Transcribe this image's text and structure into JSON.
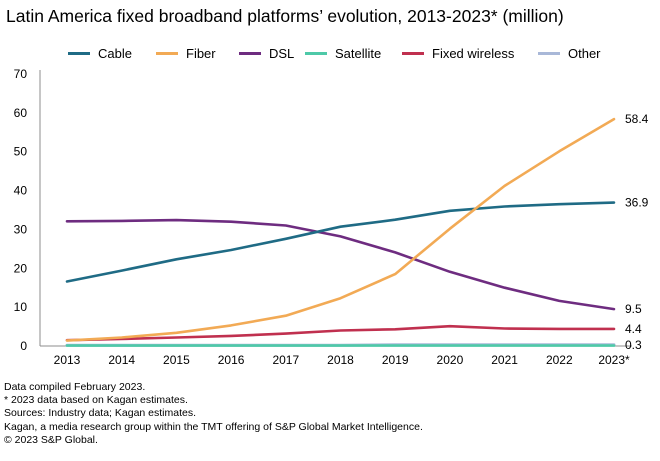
{
  "chart_data": {
    "type": "line",
    "title": "Latin America fixed broadband platforms’ evolution, 2013-2023* (million)",
    "xlabel": "",
    "ylabel": "",
    "categories": [
      "2013",
      "2014",
      "2015",
      "2016",
      "2017",
      "2018",
      "2019",
      "2020",
      "2021",
      "2022",
      "2023*"
    ],
    "ylim": [
      0,
      70
    ],
    "yticks": [
      "0",
      "10",
      "20",
      "30",
      "40",
      "50",
      "60",
      "70"
    ],
    "grid": false,
    "legend_position": "top",
    "series": [
      {
        "name": "Cable",
        "color": "#1f6b85",
        "values": [
          16.6,
          19.4,
          22.3,
          24.7,
          27.6,
          30.7,
          32.5,
          34.8,
          35.9,
          36.5,
          36.9
        ],
        "end_label": "36.9"
      },
      {
        "name": "Fiber",
        "color": "#f2aa55",
        "values": [
          1.4,
          2.2,
          3.4,
          5.3,
          7.8,
          12.3,
          18.5,
          30.2,
          41.2,
          50.1,
          58.4
        ],
        "end_label": "58.4"
      },
      {
        "name": "DSL",
        "color": "#6e2c80",
        "values": [
          32.1,
          32.2,
          32.4,
          32.0,
          31.0,
          28.2,
          24.1,
          19.1,
          15.0,
          11.6,
          9.5
        ],
        "end_label": "9.5"
      },
      {
        "name": "Satellite",
        "color": "#4ec9a8",
        "values": [
          0.1,
          0.1,
          0.1,
          0.1,
          0.1,
          0.1,
          0.1,
          0.1,
          0.1,
          0.1,
          0.1
        ],
        "end_label": ""
      },
      {
        "name": "Fixed wireless",
        "color": "#c0304f",
        "values": [
          1.5,
          1.8,
          2.2,
          2.6,
          3.2,
          4.0,
          4.3,
          5.1,
          4.5,
          4.4,
          4.4
        ],
        "end_label": "4.4"
      },
      {
        "name": "Other",
        "color": "#a9b8d8",
        "values": [
          0.2,
          0.2,
          0.2,
          0.2,
          0.2,
          0.2,
          0.3,
          0.3,
          0.3,
          0.3,
          0.3
        ],
        "end_label": "0.3"
      }
    ]
  },
  "footnotes": [
    "Data compiled February 2023.",
    "* 2023 data based on Kagan estimates.",
    "Sources: Industry data; Kagan estimates.",
    "Kagan, a media research group within the TMT offering of S&P Global Market Intelligence.",
    "© 2023 S&P Global."
  ]
}
